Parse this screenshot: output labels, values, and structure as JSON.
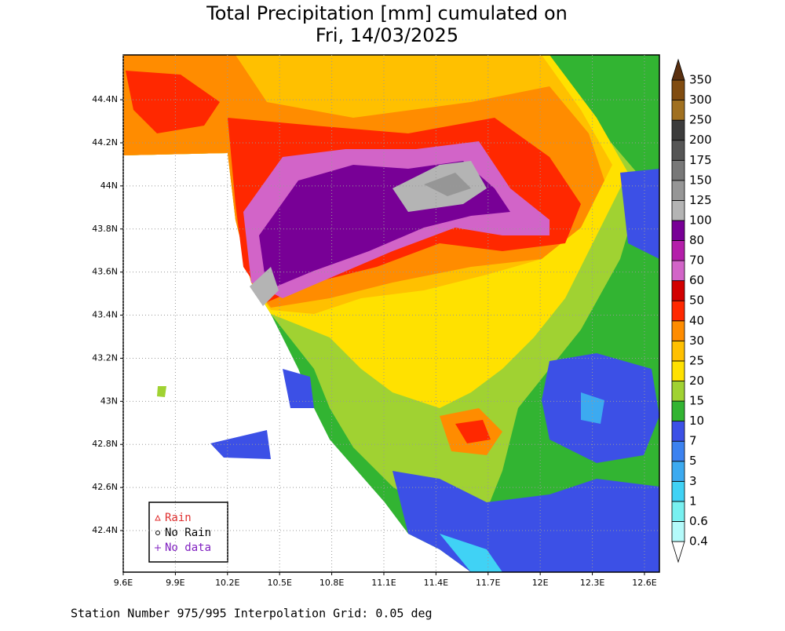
{
  "title": [
    "Total Precipitation [mm] cumulated on",
    "Fri, 14/03/2025"
  ],
  "map": {
    "xlim": [
      9.6,
      12.686
    ],
    "ylim": [
      42.207,
      44.608
    ],
    "xticks": [
      {
        "value": 9.6,
        "label": "9.6E"
      },
      {
        "value": 9.9,
        "label": "9.9E"
      },
      {
        "value": 10.2,
        "label": "10.2E"
      },
      {
        "value": 10.5,
        "label": "10.5E"
      },
      {
        "value": 10.8,
        "label": "10.8E"
      },
      {
        "value": 11.1,
        "label": "11.1E"
      },
      {
        "value": 11.4,
        "label": "11.4E"
      },
      {
        "value": 11.7,
        "label": "11.7E"
      },
      {
        "value": 12,
        "label": "12E"
      },
      {
        "value": 12.3,
        "label": "12.3E"
      },
      {
        "value": 12.6,
        "label": "12.6E"
      }
    ],
    "yticks": [
      {
        "value": 42.4,
        "label": "42.4N"
      },
      {
        "value": 42.6,
        "label": "42.6N"
      },
      {
        "value": 42.8,
        "label": "42.8N"
      },
      {
        "value": 43,
        "label": "43N"
      },
      {
        "value": 43.2,
        "label": "43.2N"
      },
      {
        "value": 43.4,
        "label": "43.4N"
      },
      {
        "value": 43.6,
        "label": "43.6N"
      },
      {
        "value": 43.8,
        "label": "43.8N"
      },
      {
        "value": 44,
        "label": "44N"
      },
      {
        "value": 44.2,
        "label": "44.2N"
      },
      {
        "value": 44.4,
        "label": "44.4N"
      }
    ]
  },
  "colorbar": {
    "values": [
      0.4,
      0.6,
      1,
      3,
      5,
      7,
      10,
      15,
      20,
      25,
      30,
      40,
      50,
      60,
      70,
      80,
      100,
      125,
      150,
      175,
      200,
      250,
      300,
      350
    ],
    "colors": [
      "#ffffff",
      "#b4fafa",
      "#78f0f0",
      "#40d2f5",
      "#3caaf0",
      "#3c82f0",
      "#3c50e6",
      "#32b432",
      "#a0d232",
      "#ffe100",
      "#ffc000",
      "#ff8c00",
      "#ff2800",
      "#d20000",
      "#d264c8",
      "#b41eaa",
      "#780096",
      "#b4b4b4",
      "#969696",
      "#787878",
      "#555555",
      "#3c3c3c",
      "#a07020",
      "#804c10",
      "#5a3010"
    ]
  },
  "legend": [
    "Rain",
    "No Rain",
    "No data"
  ],
  "footer": "Station Number 975/995 Interpolation Grid: 0.05 deg"
}
